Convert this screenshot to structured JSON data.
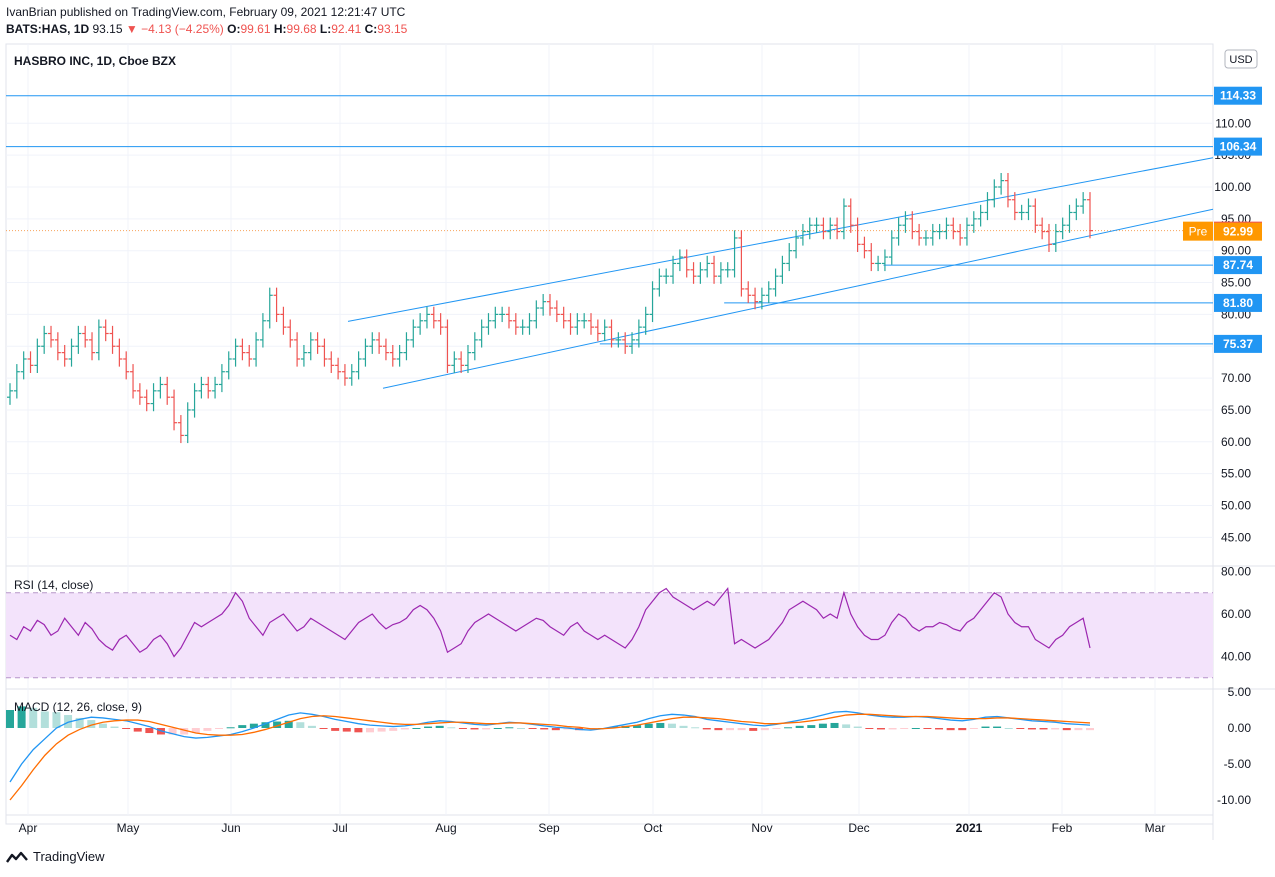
{
  "header": {
    "publisher": "IvanBrian published on TradingView.com, February 09, 2021 12:21:47 UTC",
    "symbol": "BATS:HAS, 1D",
    "last": "93.15",
    "change": "−4.13 (−4.25%)",
    "o_label": "O:",
    "o": "99.61",
    "h_label": "H:",
    "h": "99.68",
    "l_label": "L:",
    "l": "92.41",
    "c_label": "C:",
    "c": "93.15"
  },
  "brand": "TradingView",
  "chart_data": [
    {
      "type": "candlestick",
      "title": "HASBRO INC, 1D, Cboe BZX",
      "currency": "USD",
      "y_ticks": [
        "110.00",
        "105.00",
        "100.00",
        "95.00",
        "90.00",
        "85.00",
        "80.00",
        "75.00",
        "70.00",
        "65.00",
        "60.00",
        "55.00",
        "50.00",
        "45.00"
      ],
      "x_ticks": [
        "Apr",
        "May",
        "Jun",
        "Jul",
        "Aug",
        "Sep",
        "Oct",
        "Nov",
        "Dec",
        "2021",
        "Feb",
        "Mar"
      ],
      "level_lines": [
        114.33,
        106.34,
        87.74,
        81.8,
        75.37
      ],
      "price_labels": [
        {
          "text": "114.33",
          "value": 114.33,
          "kind": "line"
        },
        {
          "text": "106.34",
          "value": 106.34,
          "kind": "line"
        },
        {
          "text": "93.15",
          "value": 93.15,
          "kind": "last"
        },
        {
          "text": "92.99",
          "value": 92.99,
          "kind": "pre",
          "tag": "Pre"
        },
        {
          "text": "87.74",
          "value": 87.74,
          "kind": "line"
        },
        {
          "text": "81.80",
          "value": 81.8,
          "kind": "line"
        },
        {
          "text": "75.37",
          "value": 75.37,
          "kind": "line"
        }
      ],
      "last_price": 93.15,
      "closes": [
        68,
        71,
        73,
        72,
        75,
        77,
        76,
        74,
        73,
        75,
        77,
        76,
        74,
        78,
        77,
        75,
        73,
        71,
        68,
        67,
        66,
        68,
        69,
        67,
        63,
        61,
        65,
        68,
        69,
        68,
        69,
        71,
        73,
        75,
        74,
        73,
        76,
        79,
        83,
        80,
        78,
        76,
        73,
        74,
        76,
        75,
        73,
        72,
        71,
        70,
        71,
        73,
        75,
        76,
        75,
        74,
        73,
        74,
        76,
        78,
        79,
        80,
        79,
        78,
        72,
        73,
        72,
        74,
        76,
        78,
        79,
        80,
        80,
        79,
        78,
        78,
        79,
        81,
        82,
        81,
        80,
        79,
        78,
        79,
        79,
        78,
        77,
        78,
        76,
        76,
        75,
        76,
        78,
        80,
        84,
        86,
        86,
        88,
        89,
        87,
        86,
        87,
        88,
        86,
        87,
        87,
        92,
        84,
        83,
        82,
        83,
        84,
        86,
        88,
        90,
        92,
        93,
        94,
        94,
        93,
        94,
        93,
        97,
        94,
        91,
        90,
        88,
        88,
        89,
        92,
        94,
        95,
        93,
        92,
        92,
        93,
        93,
        94,
        93,
        92,
        94,
        95,
        96,
        98,
        100,
        101,
        98,
        96,
        96,
        97,
        94,
        93,
        91,
        93,
        94,
        96,
        97,
        98,
        93.15
      ],
      "channel": {
        "upper": [
          [
            72,
            78.9
          ],
          [
            1212,
            104.6
          ]
        ],
        "lower": [
          [
            72,
            68.4
          ],
          [
            1212,
            96.5
          ]
        ]
      },
      "horizontal_segments": [
        {
          "value": 87.74,
          "x_from_frac": 0.727
        },
        {
          "value": 81.8,
          "x_from_frac": 0.595
        },
        {
          "value": 75.37,
          "x_from_frac": 0.492
        }
      ]
    },
    {
      "type": "line",
      "title": "RSI (14, close)",
      "y_ticks": [
        "80.00",
        "60.00",
        "40.00"
      ],
      "band": [
        30,
        70
      ],
      "values": [
        50,
        48,
        54,
        52,
        57,
        55,
        50,
        52,
        58,
        54,
        50,
        56,
        53,
        48,
        45,
        43,
        48,
        50,
        46,
        42,
        44,
        48,
        50,
        46,
        40,
        44,
        50,
        56,
        54,
        56,
        58,
        60,
        64,
        70,
        66,
        58,
        54,
        50,
        56,
        58,
        60,
        56,
        52,
        54,
        58,
        56,
        54,
        52,
        50,
        48,
        52,
        56,
        58,
        60,
        56,
        53,
        55,
        56,
        58,
        62,
        64,
        62,
        58,
        52,
        42,
        44,
        46,
        52,
        56,
        58,
        60,
        58,
        56,
        54,
        52,
        54,
        56,
        58,
        57,
        54,
        52,
        50,
        54,
        56,
        52,
        50,
        48,
        50,
        48,
        46,
        44,
        48,
        54,
        62,
        66,
        70,
        72,
        68,
        66,
        64,
        62,
        64,
        66,
        64,
        68,
        72,
        46,
        48,
        46,
        44,
        46,
        48,
        52,
        56,
        62,
        64,
        66,
        64,
        62,
        58,
        60,
        58,
        70,
        60,
        54,
        50,
        48,
        48,
        50,
        56,
        60,
        58,
        54,
        52,
        54,
        54,
        56,
        55,
        53,
        52,
        56,
        58,
        62,
        66,
        70,
        68,
        60,
        56,
        54,
        54,
        48,
        46,
        44,
        48,
        50,
        54,
        56,
        58,
        44
      ],
      "last": 44
    },
    {
      "type": "macd",
      "title": "MACD (12, 26, close, 9)",
      "y_ticks": [
        "5.00",
        "0.00",
        "-5.00",
        "-10.00"
      ],
      "macd": [
        -7.5,
        -5,
        -3,
        -1.5,
        0,
        0.8,
        1.2,
        1.5,
        1.4,
        1.2,
        1,
        0.6,
        0.2,
        -0.4,
        -0.8,
        -1.2,
        -1.4,
        -1.3,
        -1.1,
        -0.9,
        -0.5,
        0,
        0.6,
        1.2,
        1.8,
        2.1,
        1.9,
        1.6,
        1.2,
        0.9,
        0.6,
        0.4,
        0.3,
        0.2,
        0.3,
        0.5,
        0.8,
        1,
        0.9,
        0.7,
        0.5,
        0.4,
        0.6,
        0.8,
        0.7,
        0.5,
        0.3,
        0.1,
        0,
        -0.2,
        -0.3,
        -0.1,
        0.2,
        0.5,
        0.8,
        1.3,
        1.7,
        1.9,
        1.8,
        1.6,
        1.2,
        1,
        0.8,
        0.6,
        0.4,
        0.3,
        0.5,
        0.8,
        1.1,
        1.4,
        1.8,
        2.2,
        2.3,
        2.1,
        1.8,
        1.6,
        1.5,
        1.5,
        1.6,
        1.5,
        1.3,
        1.1,
        1,
        1.2,
        1.5,
        1.6,
        1.4,
        1.2,
        1.0,
        0.9,
        0.8,
        0.6,
        0.5,
        0.4
      ],
      "signal": [
        -10,
        -8,
        -5.8,
        -3.8,
        -2.2,
        -1,
        -0.2,
        0.4,
        0.8,
        1,
        1.1,
        1.1,
        0.9,
        0.5,
        0.1,
        -0.3,
        -0.7,
        -0.9,
        -1,
        -1,
        -0.9,
        -0.6,
        -0.2,
        0.3,
        0.8,
        1.3,
        1.6,
        1.7,
        1.6,
        1.4,
        1.2,
        1,
        0.8,
        0.6,
        0.5,
        0.5,
        0.6,
        0.7,
        0.8,
        0.8,
        0.7,
        0.6,
        0.6,
        0.7,
        0.7,
        0.6,
        0.5,
        0.4,
        0.2,
        0.1,
        -0.1,
        -0.1,
        0,
        0.2,
        0.4,
        0.7,
        1,
        1.3,
        1.5,
        1.5,
        1.4,
        1.3,
        1.1,
        0.9,
        0.8,
        0.6,
        0.6,
        0.7,
        0.8,
        1,
        1.2,
        1.5,
        1.8,
        1.9,
        1.9,
        1.8,
        1.7,
        1.6,
        1.6,
        1.6,
        1.5,
        1.4,
        1.3,
        1.3,
        1.3,
        1.4,
        1.4,
        1.3,
        1.2,
        1.1,
        1.0,
        0.9,
        0.8,
        0.7
      ]
    }
  ]
}
